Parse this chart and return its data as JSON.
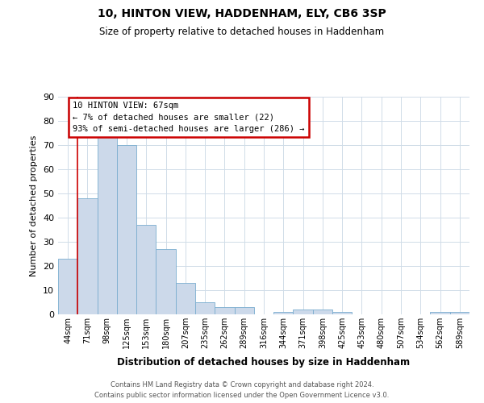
{
  "title": "10, HINTON VIEW, HADDENHAM, ELY, CB6 3SP",
  "subtitle": "Size of property relative to detached houses in Haddenham",
  "xlabel": "Distribution of detached houses by size in Haddenham",
  "ylabel": "Number of detached properties",
  "footer_line1": "Contains HM Land Registry data © Crown copyright and database right 2024.",
  "footer_line2": "Contains public sector information licensed under the Open Government Licence v3.0.",
  "bin_labels": [
    "44sqm",
    "71sqm",
    "98sqm",
    "125sqm",
    "153sqm",
    "180sqm",
    "207sqm",
    "235sqm",
    "262sqm",
    "289sqm",
    "316sqm",
    "344sqm",
    "371sqm",
    "398sqm",
    "425sqm",
    "453sqm",
    "480sqm",
    "507sqm",
    "534sqm",
    "562sqm",
    "589sqm"
  ],
  "bar_heights": [
    23,
    48,
    75,
    70,
    37,
    27,
    13,
    5,
    3,
    3,
    0,
    1,
    2,
    2,
    1,
    0,
    0,
    0,
    0,
    1,
    1
  ],
  "bar_color": "#ccd9ea",
  "bar_edge_color": "#7aadcf",
  "grid_color": "#d0dce8",
  "property_bin_index": 1,
  "annotation_text_line1": "10 HINTON VIEW: 67sqm",
  "annotation_text_line2": "← 7% of detached houses are smaller (22)",
  "annotation_text_line3": "93% of semi-detached houses are larger (286) →",
  "annotation_box_color": "#ffffff",
  "annotation_box_edge": "#cc0000",
  "ylim": [
    0,
    90
  ],
  "yticks": [
    0,
    10,
    20,
    30,
    40,
    50,
    60,
    70,
    80,
    90
  ],
  "background_color": "#ffffff"
}
